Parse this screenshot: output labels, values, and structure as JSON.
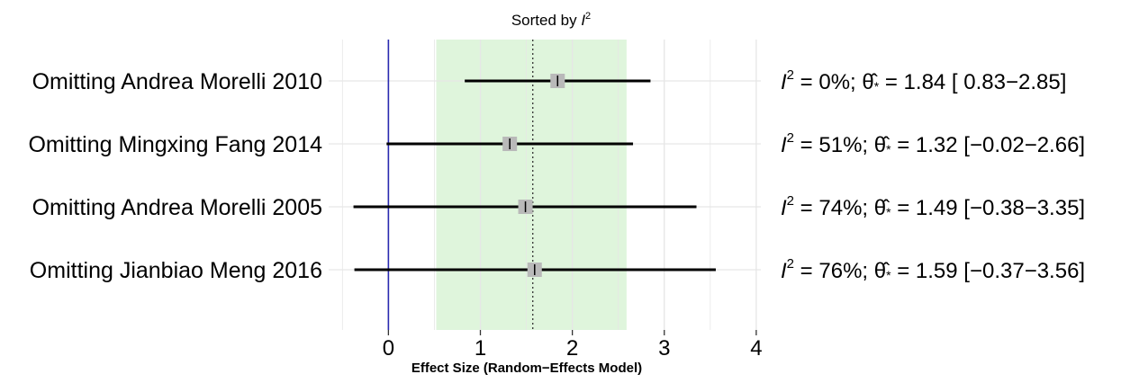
{
  "chart_data": {
    "type": "forest",
    "title": "Sorted by",
    "title_italic": "I",
    "title_sup": "2",
    "xlabel": "Effect Size (Random−Effects Model)",
    "xlim": [
      -0.65,
      4.05
    ],
    "xticks": [
      0,
      1,
      2,
      3,
      4
    ],
    "grid": true,
    "reference_line": 0,
    "pooled_effect": 1.57,
    "pooled_ci": [
      0.52,
      2.59
    ],
    "rows": [
      {
        "label": "Omitting Andrea Morelli 2010",
        "i2": "0%",
        "effect": 1.84,
        "lower": 0.83,
        "upper": 2.85,
        "stat_text": "= 1.84 [ 0.83−2.85]",
        "i2_text": "=  0%;"
      },
      {
        "label": "Omitting Mingxing Fang 2014",
        "i2": "51%",
        "effect": 1.32,
        "lower": -0.02,
        "upper": 2.66,
        "stat_text": "= 1.32 [−0.02−2.66]",
        "i2_text": "= 51%;"
      },
      {
        "label": "Omitting Andrea Morelli 2005",
        "i2": "74%",
        "effect": 1.49,
        "lower": -0.38,
        "upper": 3.35,
        "stat_text": "= 1.49 [−0.38−3.35]",
        "i2_text": "= 74%;"
      },
      {
        "label": "Omitting Jianbiao Meng 2016",
        "i2": "76%",
        "effect": 1.59,
        "lower": -0.37,
        "upper": 3.56,
        "stat_text": "= 1.59 [−0.37−3.56]",
        "i2_text": "= 76%;"
      }
    ],
    "colors": {
      "ci_band": "#dff5dc",
      "reference_line": "#2a2ab0",
      "point": "#b9b9b9",
      "grid": "#e6e6e6",
      "ci_line": "#000000"
    }
  }
}
